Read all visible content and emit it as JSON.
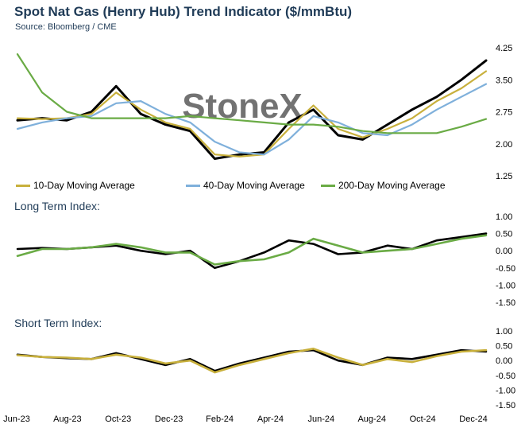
{
  "title": "Spot Nat Gas (Henry Hub) Trend Indicator ($/mmBtu)",
  "source": "Source: Bloomberg / CME",
  "watermark": "StoneX",
  "long_term_title": "Long Term Index:",
  "short_term_title": "Short Term Index:",
  "colors": {
    "price": "#000000",
    "ma10": "#c8b03c",
    "ma40": "#7fb0db",
    "ma200": "#6aab45",
    "lt_line": "#6aab45",
    "st_line": "#c8b03c",
    "text": "#1f3b57"
  },
  "x_labels": [
    "Jun-23",
    "Aug-23",
    "Oct-23",
    "Dec-23",
    "Feb-24",
    "Apr-24",
    "Jun-24",
    "Aug-24",
    "Oct-24",
    "Dec-24"
  ],
  "legend": [
    {
      "label": "10-Day Moving Average",
      "color": "#c8b03c"
    },
    {
      "label": "40-Day Moving Average",
      "color": "#7fb0db"
    },
    {
      "label": "200-Day Moving Average",
      "color": "#6aab45"
    }
  ],
  "chart_data": [
    {
      "type": "line",
      "title": "Spot Nat Gas (Henry Hub) Trend Indicator ($/mmBtu)",
      "ylim": [
        1.25,
        4.25
      ],
      "yticks": [
        "4.25",
        "3.50",
        "2.75",
        "2.00",
        "1.25"
      ],
      "x": [
        "Jun-23",
        "Jul-23",
        "Aug-23",
        "Sep-23",
        "Oct-23",
        "Nov-23",
        "Dec-23",
        "Jan-24",
        "Feb-24",
        "Mar-24",
        "Apr-24",
        "May-24",
        "Jun-24",
        "Jul-24",
        "Aug-24",
        "Sep-24",
        "Oct-24",
        "Nov-24",
        "Dec-24",
        "Jan-25"
      ],
      "series": [
        {
          "name": "Spot",
          "values": [
            2.55,
            2.6,
            2.55,
            2.75,
            3.35,
            2.7,
            2.45,
            2.3,
            1.65,
            1.75,
            1.8,
            2.5,
            2.8,
            2.2,
            2.1,
            2.45,
            2.8,
            3.1,
            3.5,
            3.95
          ]
        },
        {
          "name": "10-Day Moving Average",
          "values": [
            2.6,
            2.58,
            2.6,
            2.7,
            3.2,
            2.8,
            2.5,
            2.35,
            1.75,
            1.7,
            1.75,
            2.35,
            2.9,
            2.35,
            2.15,
            2.35,
            2.6,
            3.0,
            3.3,
            3.7
          ]
        },
        {
          "name": "40-Day Moving Average",
          "values": [
            2.35,
            2.5,
            2.6,
            2.65,
            2.95,
            3.0,
            2.7,
            2.5,
            2.05,
            1.8,
            1.75,
            2.1,
            2.65,
            2.5,
            2.25,
            2.2,
            2.45,
            2.8,
            3.1,
            3.4
          ]
        },
        {
          "name": "200-Day Moving Average",
          "values": [
            4.1,
            3.2,
            2.75,
            2.6,
            2.6,
            2.6,
            2.6,
            2.65,
            2.6,
            2.55,
            2.5,
            2.45,
            2.45,
            2.4,
            2.3,
            2.25,
            2.25,
            2.25,
            2.4,
            2.58
          ]
        }
      ]
    },
    {
      "type": "line",
      "title": "Long Term Index:",
      "ylim": [
        -1.5,
        1.0
      ],
      "yticks": [
        "1.00",
        "0.50",
        "0.00",
        "-0.50",
        "-1.00",
        "-1.50"
      ],
      "x": [
        "Jun-23",
        "Jul-23",
        "Aug-23",
        "Sep-23",
        "Oct-23",
        "Nov-23",
        "Dec-23",
        "Jan-24",
        "Feb-24",
        "Mar-24",
        "Apr-24",
        "May-24",
        "Jun-24",
        "Jul-24",
        "Aug-24",
        "Sep-24",
        "Oct-24",
        "Nov-24",
        "Dec-24",
        "Jan-25"
      ],
      "series": [
        {
          "values": [
            0.05,
            0.08,
            0.05,
            0.1,
            0.15,
            0.0,
            -0.1,
            0.0,
            -0.5,
            -0.3,
            -0.05,
            0.3,
            0.2,
            -0.1,
            -0.05,
            0.15,
            0.05,
            0.3,
            0.4,
            0.5
          ]
        },
        {
          "values": [
            -0.15,
            0.05,
            0.05,
            0.1,
            0.2,
            0.1,
            -0.05,
            -0.05,
            -0.4,
            -0.3,
            -0.25,
            -0.05,
            0.35,
            0.15,
            -0.05,
            0.0,
            0.05,
            0.2,
            0.35,
            0.45
          ]
        }
      ]
    },
    {
      "type": "line",
      "title": "Short Term Index:",
      "ylim": [
        -1.5,
        1.0
      ],
      "yticks": [
        "1.00",
        "0.50",
        "0.00",
        "-0.50",
        "-1.00",
        "-1.50"
      ],
      "x": [
        "Jun-23",
        "Jul-23",
        "Aug-23",
        "Sep-23",
        "Oct-23",
        "Nov-23",
        "Dec-23",
        "Jan-24",
        "Feb-24",
        "Mar-24",
        "Apr-24",
        "May-24",
        "Jun-24",
        "Jul-24",
        "Aug-24",
        "Sep-24",
        "Oct-24",
        "Nov-24",
        "Dec-24",
        "Jan-25"
      ],
      "series": [
        {
          "values": [
            0.2,
            0.12,
            0.08,
            0.05,
            0.25,
            0.05,
            -0.15,
            0.05,
            -0.35,
            -0.1,
            0.1,
            0.3,
            0.35,
            0.0,
            -0.15,
            0.1,
            0.05,
            0.2,
            0.35,
            0.3
          ]
        },
        {
          "values": [
            0.18,
            0.12,
            0.1,
            0.05,
            0.2,
            0.1,
            -0.1,
            0.0,
            -0.4,
            -0.15,
            0.05,
            0.25,
            0.4,
            0.1,
            -0.15,
            0.05,
            -0.05,
            0.15,
            0.3,
            0.35
          ]
        }
      ]
    }
  ]
}
